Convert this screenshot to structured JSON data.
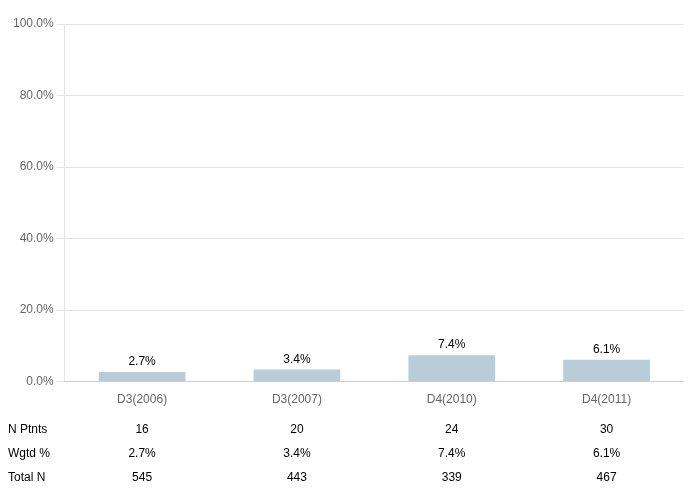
{
  "chart_data": {
    "type": "bar",
    "categories": [
      "D3(2006)",
      "D3(2007)",
      "D4(2010)",
      "D4(2011)"
    ],
    "values": [
      2.7,
      3.4,
      7.4,
      6.1
    ],
    "value_labels": [
      "2.7%",
      "3.4%",
      "7.4%",
      "6.1%"
    ],
    "data_labels": true,
    "color": "#b8cdd8",
    "ylim": [
      0,
      100
    ],
    "yticks": [
      {
        "value": 0,
        "label": "0.0%"
      },
      {
        "value": 20,
        "label": "20.0%"
      },
      {
        "value": 40,
        "label": "40.0%"
      },
      {
        "value": 60,
        "label": "60.0%"
      },
      {
        "value": 80,
        "label": "80.0%"
      },
      {
        "value": 100,
        "label": "100.0%"
      }
    ],
    "grid": "y",
    "table": [
      {
        "label": "N Ptnts",
        "values": [
          16,
          20,
          24,
          30
        ]
      },
      {
        "label": "Wgtd %",
        "values": [
          2.7,
          3.4,
          7.4,
          6.1
        ],
        "value_labels": [
          "2.7%",
          "3.4%",
          "7.4%",
          "6.1%"
        ]
      },
      {
        "label": "Total N",
        "values": [
          545,
          443,
          339,
          467
        ]
      }
    ]
  }
}
